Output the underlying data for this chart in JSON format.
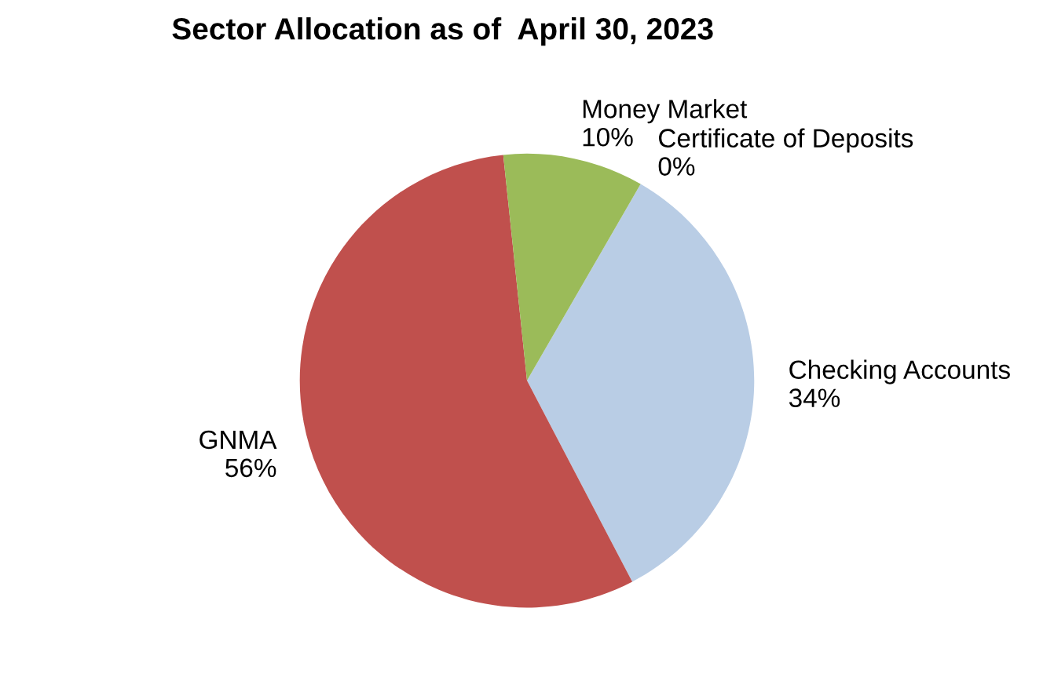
{
  "chart_data": {
    "type": "pie",
    "title": "Sector Allocation as of  April 30, 2023",
    "categories": [
      "Certificate of Deposits",
      "Checking Accounts",
      "GNMA",
      "Money Market"
    ],
    "values": [
      0,
      34,
      56,
      10
    ],
    "value_labels": [
      "0%",
      "34%",
      "56%",
      "10%"
    ],
    "colors": [
      "#4f81bd",
      "#b9cde5",
      "#c0504d",
      "#9bbb59"
    ],
    "legend": false
  }
}
